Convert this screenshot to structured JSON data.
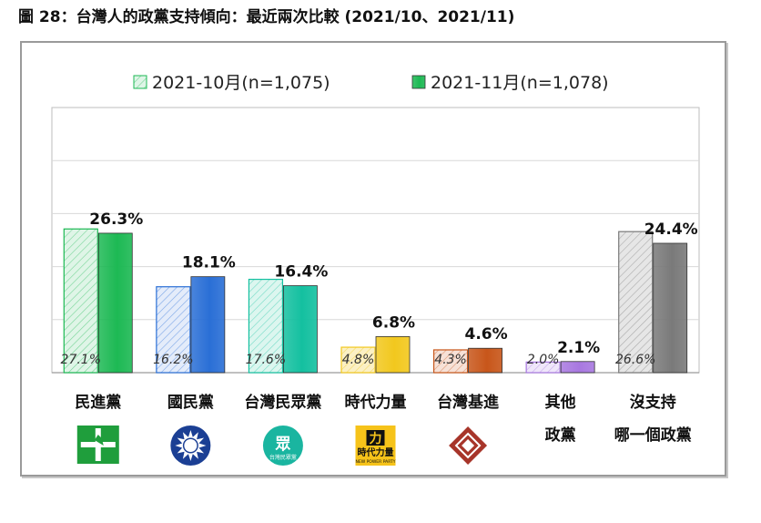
{
  "title": "圖 28：台灣人的政黨支持傾向：最近兩次比較  (2021/10、2021/11)",
  "chart_data": {
    "type": "bar",
    "title": "圖 28：台灣人的政黨支持傾向：最近兩次比較  (2021/10、2021/11)",
    "categories": [
      "民進黨",
      "國民黨",
      "台灣民眾黨",
      "時代力量",
      "台灣基進",
      "其他政黨",
      "沒支持哪一個政黨"
    ],
    "category_lines": [
      [
        "民進黨"
      ],
      [
        "國民黨"
      ],
      [
        "台灣民眾黨"
      ],
      [
        "時代力量"
      ],
      [
        "台灣基進"
      ],
      [
        "其他",
        "政黨"
      ],
      [
        "沒支持",
        "哪一個政黨"
      ]
    ],
    "series": [
      {
        "name": "2021-10月(n=1,075)",
        "values": [
          27.1,
          16.2,
          17.6,
          4.8,
          4.3,
          2.0,
          26.6
        ],
        "labels": [
          "27.1%",
          "16.2%",
          "17.6%",
          "4.8%",
          "4.3%",
          "2.0%",
          "26.6%"
        ],
        "style": "hatched"
      },
      {
        "name": "2021-11月(n=1,078)",
        "values": [
          26.3,
          18.1,
          16.4,
          6.8,
          4.6,
          2.1,
          24.4
        ],
        "labels": [
          "26.3%",
          "18.1%",
          "16.4%",
          "6.8%",
          "4.6%",
          "2.1%",
          "24.4%"
        ],
        "style": "solid"
      }
    ],
    "colors": [
      "#1db954",
      "#2a6fd6",
      "#14c0a0",
      "#f2c81e",
      "#c8561a",
      "#a878e0",
      "#7a7a7a"
    ],
    "light_colors": [
      "#dff5e7",
      "#e4ecfa",
      "#dcf6ef",
      "#fbf0c4",
      "#f6e1d7",
      "#efe6fa",
      "#e6e6e6"
    ],
    "ylim": [
      0,
      50
    ],
    "grid": true,
    "legend_position": "top"
  },
  "logos": [
    {
      "category": "民進黨",
      "icon": "dpp-logo-icon"
    },
    {
      "category": "國民黨",
      "icon": "kmt-logo-icon"
    },
    {
      "category": "台灣民眾黨",
      "icon": "tpp-logo-icon",
      "text": [
        "眾",
        "台灣民眾黨"
      ]
    },
    {
      "category": "時代力量",
      "icon": "npp-logo-icon",
      "text": [
        "時代力量",
        "NEW POWER PARTY"
      ]
    },
    {
      "category": "台灣基進",
      "icon": "tsp-logo-icon"
    }
  ]
}
